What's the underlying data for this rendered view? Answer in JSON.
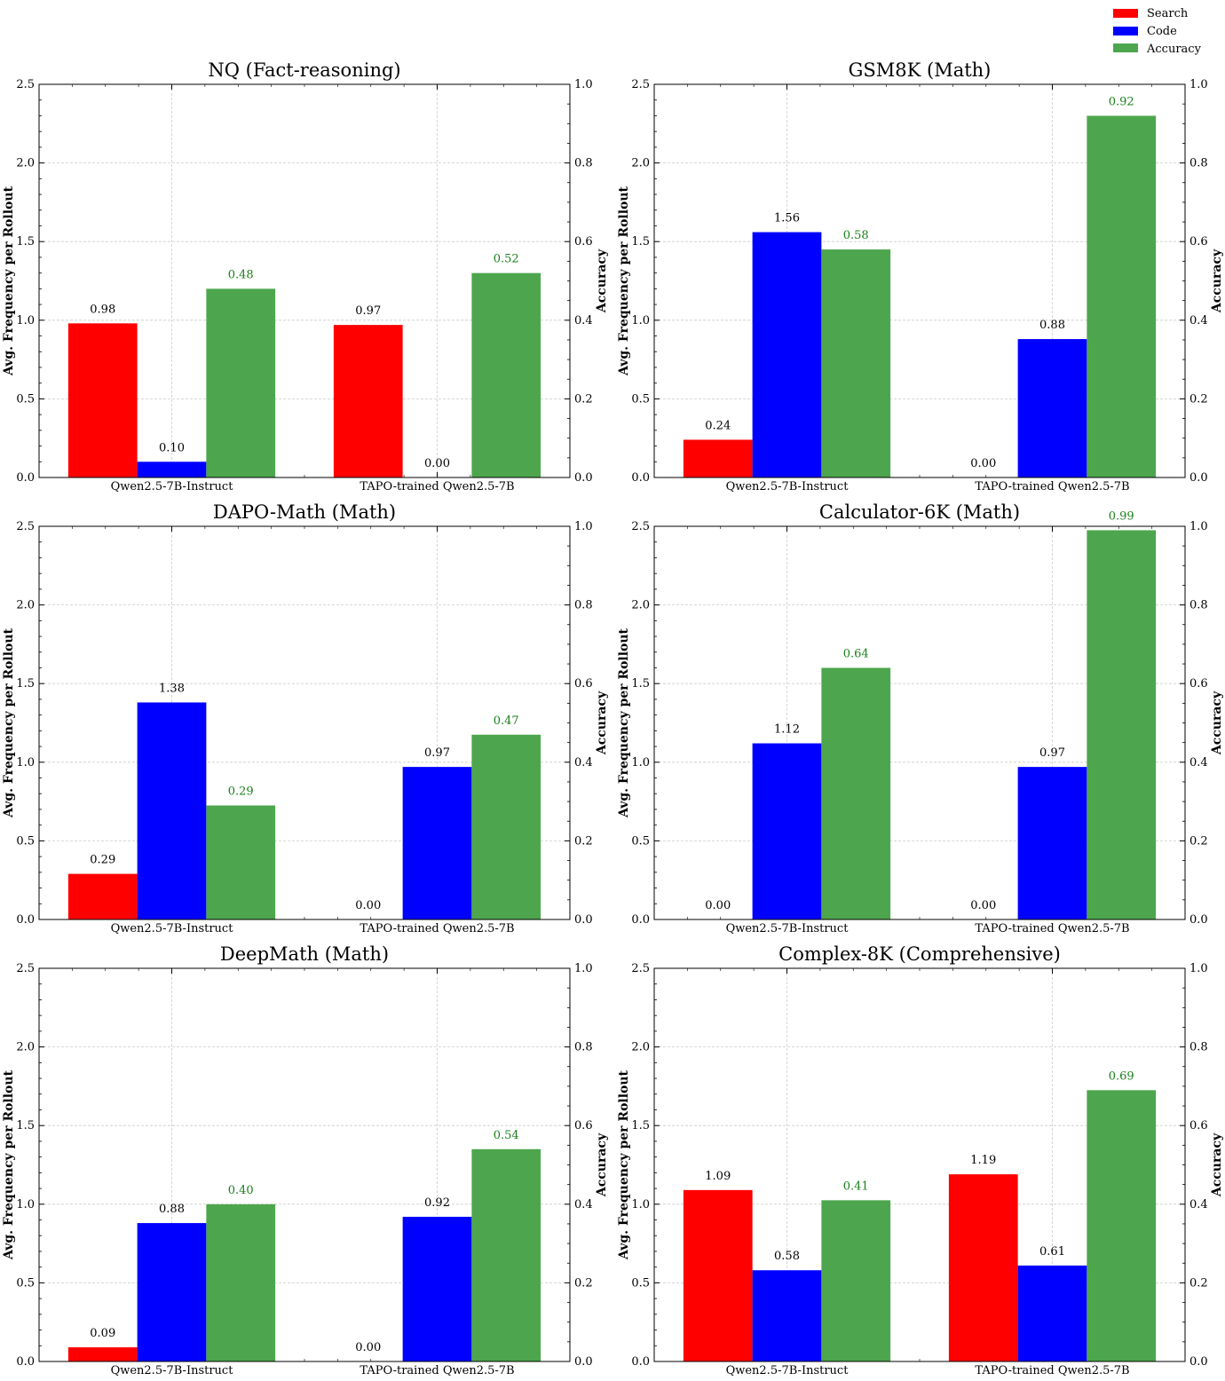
{
  "legend": {
    "placement": "top-right",
    "items": [
      {
        "label": "Search",
        "color": "#ff0000"
      },
      {
        "label": "Code",
        "color": "#0000ff"
      },
      {
        "label": "Accuracy",
        "color": "#4da64d"
      }
    ]
  },
  "colors": {
    "search": "#ff0000",
    "code": "#0000ff",
    "accuracy": "#4da64d",
    "accuracy_label": "#1a7f1a"
  },
  "chart_data": [
    {
      "type": "bar",
      "title": "NQ (Fact-reasoning)",
      "categories": [
        "Qwen2.5-7B-Instruct",
        "TAPO-trained Qwen2.5-7B"
      ],
      "ylabel": "Avg. Frequency per Rollout",
      "y2label": "Accuracy",
      "ylim": [
        0,
        2.5
      ],
      "y2lim": [
        0,
        1.0
      ],
      "yticks": [
        "0.0",
        "0.5",
        "1.0",
        "1.5",
        "2.0",
        "2.5"
      ],
      "y2ticks": [
        "0.0",
        "0.2",
        "0.4",
        "0.6",
        "0.8",
        "1.0"
      ],
      "grid": true,
      "series": [
        {
          "name": "Search",
          "axis": "left",
          "values": [
            0.98,
            0.97
          ],
          "labels": [
            "0.98",
            "0.97"
          ]
        },
        {
          "name": "Code",
          "axis": "left",
          "values": [
            0.1,
            0.0
          ],
          "labels": [
            "0.10",
            "0.00"
          ]
        },
        {
          "name": "Accuracy",
          "axis": "right",
          "values": [
            0.48,
            0.52
          ],
          "labels": [
            "0.48",
            "0.52"
          ]
        }
      ]
    },
    {
      "type": "bar",
      "title": "GSM8K (Math)",
      "categories": [
        "Qwen2.5-7B-Instruct",
        "TAPO-trained Qwen2.5-7B"
      ],
      "ylabel": "Avg. Frequency per Rollout",
      "y2label": "Accuracy",
      "ylim": [
        0,
        2.5
      ],
      "y2lim": [
        0,
        1.0
      ],
      "yticks": [
        "0.0",
        "0.5",
        "1.0",
        "1.5",
        "2.0",
        "2.5"
      ],
      "y2ticks": [
        "0.0",
        "0.2",
        "0.4",
        "0.6",
        "0.8",
        "1.0"
      ],
      "grid": true,
      "series": [
        {
          "name": "Search",
          "axis": "left",
          "values": [
            0.24,
            0.0
          ],
          "labels": [
            "0.24",
            "0.00"
          ]
        },
        {
          "name": "Code",
          "axis": "left",
          "values": [
            1.56,
            0.88
          ],
          "labels": [
            "1.56",
            "0.88"
          ]
        },
        {
          "name": "Accuracy",
          "axis": "right",
          "values": [
            0.58,
            0.92
          ],
          "labels": [
            "0.58",
            "0.92"
          ]
        }
      ]
    },
    {
      "type": "bar",
      "title": "DAPO-Math (Math)",
      "categories": [
        "Qwen2.5-7B-Instruct",
        "TAPO-trained Qwen2.5-7B"
      ],
      "ylabel": "Avg. Frequency per Rollout",
      "y2label": "Accuracy",
      "ylim": [
        0,
        2.5
      ],
      "y2lim": [
        0,
        1.0
      ],
      "yticks": [
        "0.0",
        "0.5",
        "1.0",
        "1.5",
        "2.0",
        "2.5"
      ],
      "y2ticks": [
        "0.0",
        "0.2",
        "0.4",
        "0.6",
        "0.8",
        "1.0"
      ],
      "grid": true,
      "series": [
        {
          "name": "Search",
          "axis": "left",
          "values": [
            0.29,
            0.0
          ],
          "labels": [
            "0.29",
            "0.00"
          ]
        },
        {
          "name": "Code",
          "axis": "left",
          "values": [
            1.38,
            0.97
          ],
          "labels": [
            "1.38",
            "0.97"
          ]
        },
        {
          "name": "Accuracy",
          "axis": "right",
          "values": [
            0.29,
            0.47
          ],
          "labels": [
            "0.29",
            "0.47"
          ]
        }
      ]
    },
    {
      "type": "bar",
      "title": "Calculator-6K (Math)",
      "categories": [
        "Qwen2.5-7B-Instruct",
        "TAPO-trained Qwen2.5-7B"
      ],
      "ylabel": "Avg. Frequency per Rollout",
      "y2label": "Accuracy",
      "ylim": [
        0,
        2.5
      ],
      "y2lim": [
        0,
        1.0
      ],
      "yticks": [
        "0.0",
        "0.5",
        "1.0",
        "1.5",
        "2.0",
        "2.5"
      ],
      "y2ticks": [
        "0.0",
        "0.2",
        "0.4",
        "0.6",
        "0.8",
        "1.0"
      ],
      "grid": true,
      "series": [
        {
          "name": "Search",
          "axis": "left",
          "values": [
            0.0,
            0.0
          ],
          "labels": [
            "0.00",
            "0.00"
          ]
        },
        {
          "name": "Code",
          "axis": "left",
          "values": [
            1.12,
            0.97
          ],
          "labels": [
            "1.12",
            "0.97"
          ]
        },
        {
          "name": "Accuracy",
          "axis": "right",
          "values": [
            0.64,
            0.99
          ],
          "labels": [
            "0.64",
            "0.99"
          ]
        }
      ]
    },
    {
      "type": "bar",
      "title": "DeepMath (Math)",
      "categories": [
        "Qwen2.5-7B-Instruct",
        "TAPO-trained Qwen2.5-7B"
      ],
      "ylabel": "Avg. Frequency per Rollout",
      "y2label": "Accuracy",
      "ylim": [
        0,
        2.5
      ],
      "y2lim": [
        0,
        1.0
      ],
      "yticks": [
        "0.0",
        "0.5",
        "1.0",
        "1.5",
        "2.0",
        "2.5"
      ],
      "y2ticks": [
        "0.0",
        "0.2",
        "0.4",
        "0.6",
        "0.8",
        "1.0"
      ],
      "grid": true,
      "series": [
        {
          "name": "Search",
          "axis": "left",
          "values": [
            0.09,
            0.0
          ],
          "labels": [
            "0.09",
            "0.00"
          ]
        },
        {
          "name": "Code",
          "axis": "left",
          "values": [
            0.88,
            0.92
          ],
          "labels": [
            "0.88",
            "0.92"
          ]
        },
        {
          "name": "Accuracy",
          "axis": "right",
          "values": [
            0.4,
            0.54
          ],
          "labels": [
            "0.40",
            "0.54"
          ]
        }
      ]
    },
    {
      "type": "bar",
      "title": "Complex-8K (Comprehensive)",
      "categories": [
        "Qwen2.5-7B-Instruct",
        "TAPO-trained Qwen2.5-7B"
      ],
      "ylabel": "Avg. Frequency per Rollout",
      "y2label": "Accuracy",
      "ylim": [
        0,
        2.5
      ],
      "y2lim": [
        0,
        1.0
      ],
      "yticks": [
        "0.0",
        "0.5",
        "1.0",
        "1.5",
        "2.0",
        "2.5"
      ],
      "y2ticks": [
        "0.0",
        "0.2",
        "0.4",
        "0.6",
        "0.8",
        "1.0"
      ],
      "grid": true,
      "series": [
        {
          "name": "Search",
          "axis": "left",
          "values": [
            1.09,
            1.19
          ],
          "labels": [
            "1.09",
            "1.19"
          ]
        },
        {
          "name": "Code",
          "axis": "left",
          "values": [
            0.58,
            0.61
          ],
          "labels": [
            "0.58",
            "0.61"
          ]
        },
        {
          "name": "Accuracy",
          "axis": "right",
          "values": [
            0.41,
            0.69
          ],
          "labels": [
            "0.41",
            "0.69"
          ]
        }
      ]
    }
  ]
}
